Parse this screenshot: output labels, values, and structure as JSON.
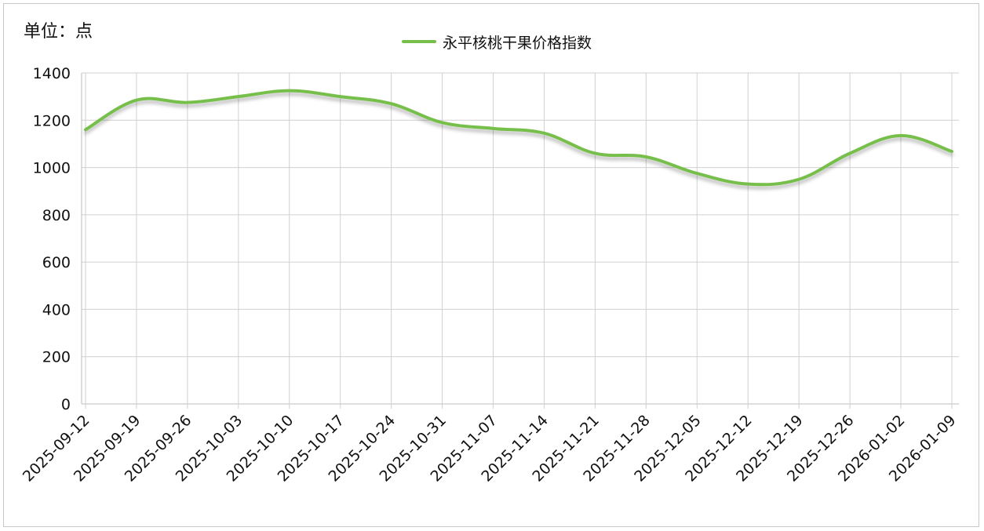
{
  "unit_label": "单位：点",
  "chart_data": {
    "type": "line",
    "title": "",
    "xlabel": "",
    "ylabel": "",
    "ylim": [
      0,
      1400
    ],
    "yticks": [
      0,
      200,
      400,
      600,
      800,
      1000,
      1200,
      1400
    ],
    "grid": true,
    "legend": "top-center",
    "x": [
      "2025-09-12",
      "2025-09-19",
      "2025-09-26",
      "2025-10-03",
      "2025-10-10",
      "2025-10-17",
      "2025-10-24",
      "2025-10-31",
      "2025-11-07",
      "2025-11-14",
      "2025-11-21",
      "2025-11-28",
      "2025-12-05",
      "2025-12-12",
      "2025-12-19",
      "2025-12-26",
      "2026-01-02",
      "2026-01-09"
    ],
    "series": [
      {
        "name": "永平核桃干果价格指数",
        "color": "#77bf4b",
        "values": [
          1160,
          1285,
          1275,
          1300,
          1325,
          1300,
          1270,
          1190,
          1165,
          1145,
          1060,
          1045,
          975,
          930,
          950,
          1060,
          1135,
          1068
        ]
      }
    ]
  }
}
